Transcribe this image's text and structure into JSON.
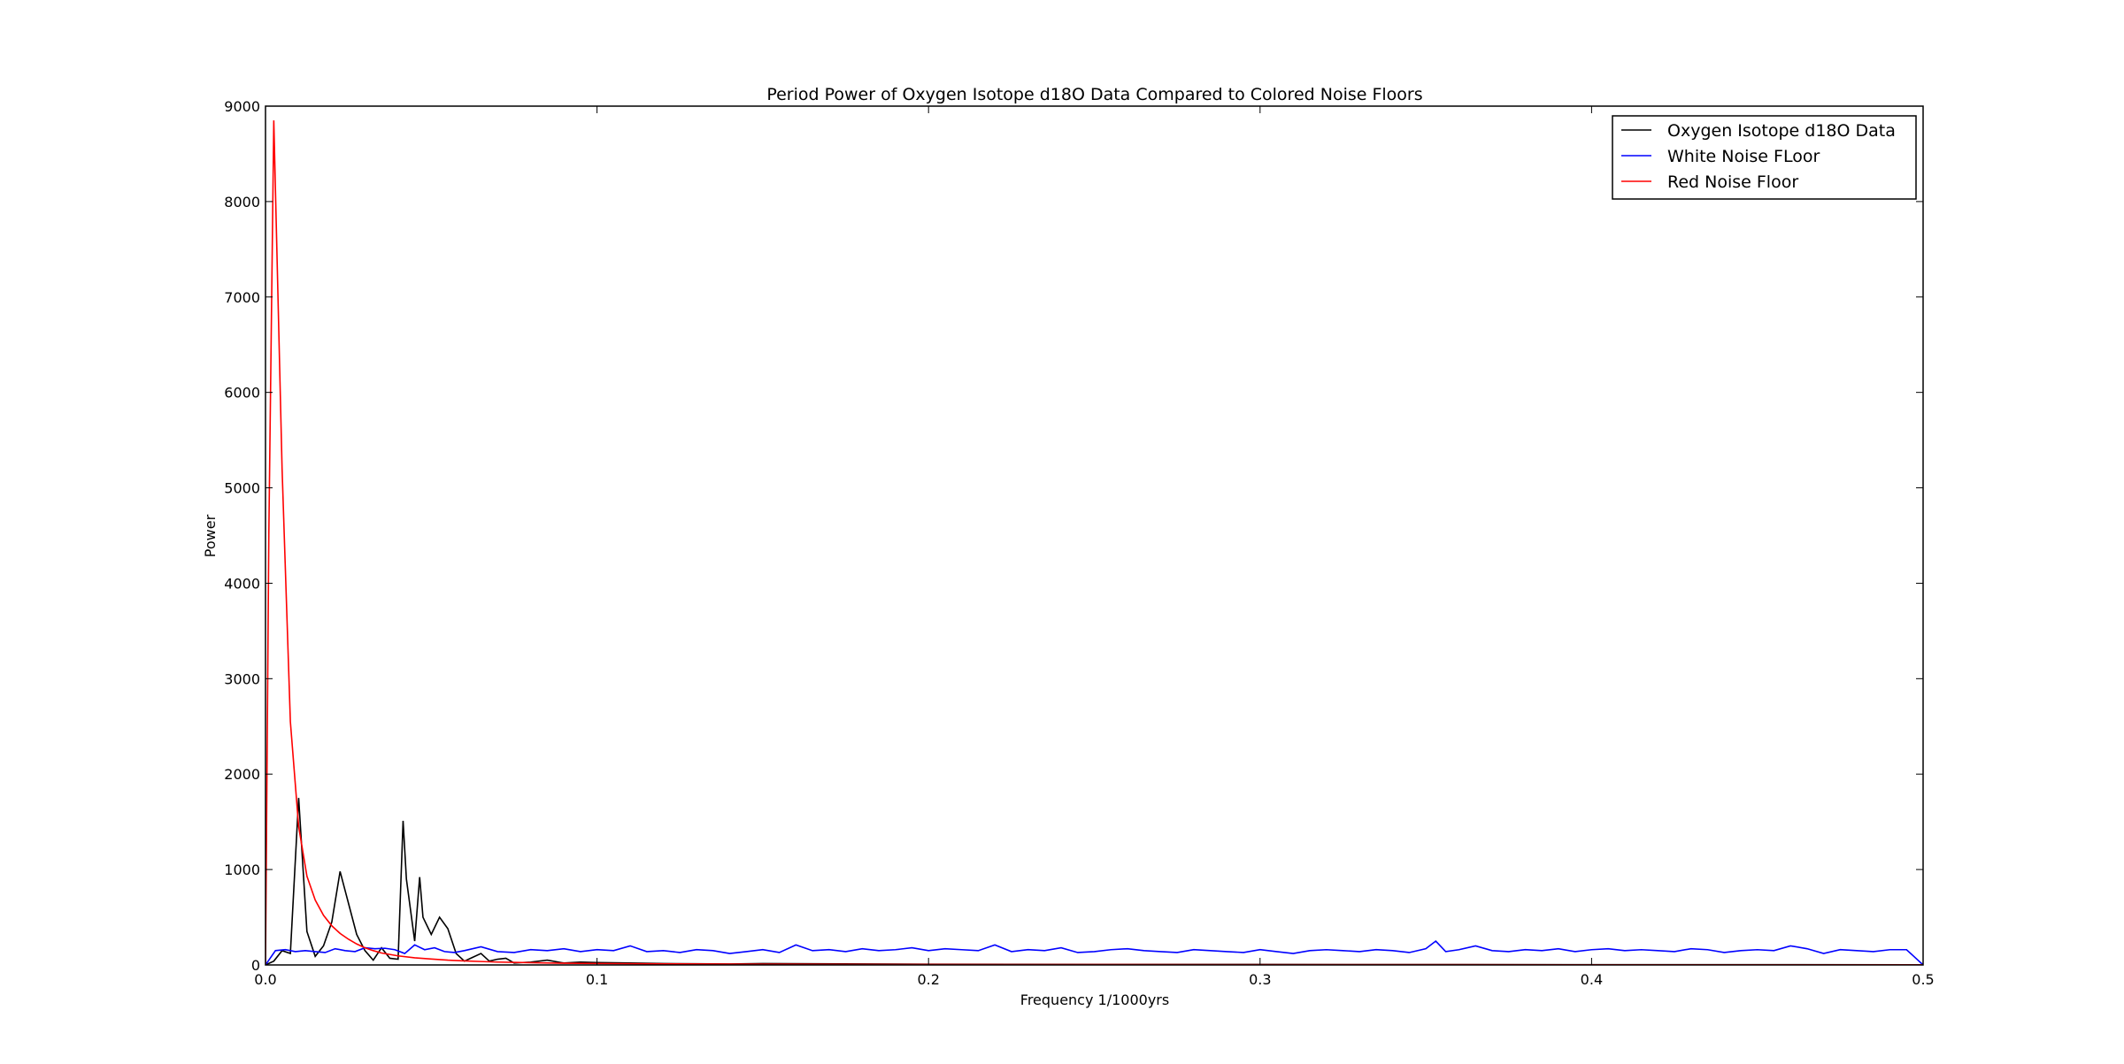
{
  "chart_data": {
    "type": "line",
    "title": "Period Power of Oxygen Isotope d18O Data Compared to Colored Noise Floors",
    "xlabel": "Frequency 1/1000yrs",
    "ylabel": "Power",
    "xlim": [
      0,
      0.5
    ],
    "ylim": [
      0,
      9000
    ],
    "xticks": [
      0,
      0.1,
      0.2,
      0.3,
      0.4,
      0.5
    ],
    "xtick_labels": [
      "0.0",
      "0.1",
      "0.2",
      "0.3",
      "0.4",
      "0.5"
    ],
    "yticks": [
      0,
      1000,
      2000,
      3000,
      4000,
      5000,
      6000,
      7000,
      8000,
      9000
    ],
    "ytick_labels": [
      "0",
      "1000",
      "2000",
      "3000",
      "4000",
      "5000",
      "6000",
      "7000",
      "8000",
      "9000"
    ],
    "grid": false,
    "legend_position": "top-right",
    "series": [
      {
        "name": "Oxygen Isotope d18O Data",
        "color": "#000000",
        "x": [
          0,
          0.0025,
          0.005,
          0.0075,
          0.01,
          0.0125,
          0.015,
          0.0175,
          0.02,
          0.0225,
          0.025,
          0.0275,
          0.03,
          0.0325,
          0.035,
          0.0375,
          0.04,
          0.0415,
          0.0425,
          0.045,
          0.0465,
          0.0475,
          0.05,
          0.0525,
          0.055,
          0.0575,
          0.06,
          0.0625,
          0.065,
          0.0675,
          0.07,
          0.0725,
          0.075,
          0.08,
          0.085,
          0.09,
          0.095,
          0.1,
          0.11,
          0.12,
          0.13,
          0.14,
          0.15,
          0.2,
          0.25,
          0.3,
          0.35,
          0.4,
          0.45,
          0.5
        ],
        "y": [
          0,
          40,
          150,
          120,
          1750,
          350,
          90,
          200,
          450,
          980,
          650,
          320,
          150,
          50,
          180,
          70,
          60,
          1510,
          900,
          250,
          920,
          500,
          320,
          500,
          380,
          120,
          40,
          80,
          120,
          40,
          60,
          70,
          20,
          30,
          50,
          20,
          30,
          25,
          20,
          15,
          12,
          10,
          15,
          8,
          5,
          5,
          4,
          3,
          3,
          2
        ]
      },
      {
        "name": "White Noise FLoor",
        "color": "#0000ff",
        "x": [
          0,
          0.003,
          0.006,
          0.009,
          0.012,
          0.015,
          0.018,
          0.021,
          0.024,
          0.027,
          0.03,
          0.033,
          0.036,
          0.039,
          0.042,
          0.045,
          0.048,
          0.051,
          0.054,
          0.057,
          0.06,
          0.065,
          0.07,
          0.075,
          0.08,
          0.085,
          0.09,
          0.095,
          0.1,
          0.105,
          0.11,
          0.115,
          0.12,
          0.125,
          0.13,
          0.135,
          0.14,
          0.145,
          0.15,
          0.155,
          0.16,
          0.165,
          0.17,
          0.175,
          0.18,
          0.185,
          0.19,
          0.195,
          0.2,
          0.205,
          0.21,
          0.215,
          0.22,
          0.225,
          0.23,
          0.235,
          0.24,
          0.245,
          0.25,
          0.255,
          0.26,
          0.265,
          0.27,
          0.275,
          0.28,
          0.285,
          0.29,
          0.295,
          0.3,
          0.305,
          0.31,
          0.315,
          0.32,
          0.325,
          0.33,
          0.335,
          0.34,
          0.345,
          0.35,
          0.353,
          0.356,
          0.36,
          0.365,
          0.37,
          0.375,
          0.38,
          0.385,
          0.39,
          0.395,
          0.4,
          0.405,
          0.41,
          0.415,
          0.42,
          0.425,
          0.43,
          0.435,
          0.44,
          0.445,
          0.45,
          0.455,
          0.46,
          0.465,
          0.47,
          0.475,
          0.48,
          0.485,
          0.49,
          0.495,
          0.5
        ],
        "y": [
          0,
          150,
          160,
          140,
          150,
          140,
          130,
          170,
          150,
          140,
          180,
          170,
          175,
          160,
          120,
          210,
          160,
          180,
          140,
          130,
          150,
          190,
          140,
          130,
          160,
          150,
          170,
          140,
          160,
          150,
          200,
          140,
          150,
          130,
          160,
          150,
          120,
          140,
          160,
          130,
          210,
          150,
          160,
          140,
          170,
          150,
          160,
          180,
          150,
          170,
          160,
          150,
          210,
          140,
          160,
          150,
          180,
          130,
          140,
          160,
          170,
          150,
          140,
          130,
          160,
          150,
          140,
          130,
          160,
          140,
          120,
          150,
          160,
          150,
          140,
          160,
          150,
          130,
          170,
          250,
          140,
          160,
          200,
          150,
          140,
          160,
          150,
          170,
          140,
          160,
          170,
          150,
          160,
          150,
          140,
          170,
          160,
          130,
          150,
          160,
          150,
          200,
          170,
          120,
          160,
          150,
          140,
          160,
          160,
          0
        ]
      },
      {
        "name": "Red Noise Floor",
        "color": "#ff0000",
        "x": [
          0,
          0.001,
          0.0025,
          0.005,
          0.0075,
          0.01,
          0.0125,
          0.015,
          0.0175,
          0.02,
          0.0225,
          0.025,
          0.0275,
          0.03,
          0.0325,
          0.035,
          0.04,
          0.045,
          0.05,
          0.055,
          0.06,
          0.065,
          0.07,
          0.08,
          0.09,
          0.1,
          0.12,
          0.15,
          0.2,
          0.25,
          0.3,
          0.35,
          0.4,
          0.45,
          0.5
        ],
        "y": [
          0,
          4500,
          8850,
          5200,
          2550,
          1450,
          930,
          680,
          520,
          410,
          330,
          270,
          220,
          180,
          150,
          125,
          95,
          75,
          62,
          50,
          42,
          36,
          30,
          24,
          18,
          15,
          11,
          8,
          5,
          4,
          3,
          3,
          2,
          2,
          2
        ]
      }
    ]
  }
}
